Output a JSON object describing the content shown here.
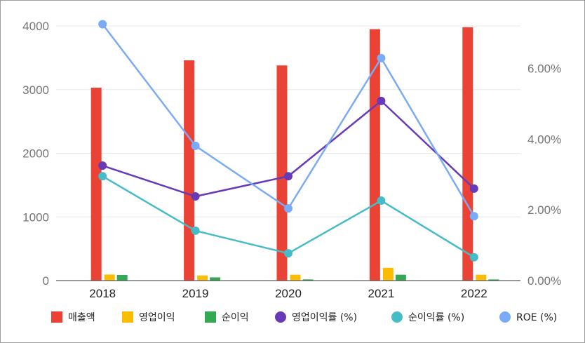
{
  "chart_data": {
    "type": "bar",
    "categories": [
      "2018",
      "2019",
      "2020",
      "2021",
      "2022"
    ],
    "series": [
      {
        "name": "매출액",
        "type": "bar",
        "axis": "left",
        "color": "#ea4335",
        "values": [
          3030,
          3460,
          3380,
          3950,
          3980
        ]
      },
      {
        "name": "영업이익",
        "type": "bar",
        "axis": "left",
        "color": "#fbbc04",
        "values": [
          95,
          80,
          92,
          200,
          92
        ]
      },
      {
        "name": "순이익",
        "type": "bar",
        "axis": "left",
        "color": "#34a853",
        "values": [
          88,
          50,
          18,
          92,
          18
        ]
      },
      {
        "name": "영업이익률 (%)",
        "type": "line",
        "axis": "right",
        "color": "#673ab7",
        "values": [
          3.25,
          2.38,
          2.95,
          5.08,
          2.6
        ]
      },
      {
        "name": "순이익률 (%)",
        "type": "line",
        "axis": "right",
        "color": "#46bdc6",
        "values": [
          2.95,
          1.41,
          0.77,
          2.26,
          0.66
        ]
      },
      {
        "name": "ROE (%)",
        "type": "line",
        "axis": "right",
        "color": "#7baaf7",
        "values": [
          7.25,
          3.81,
          2.04,
          6.29,
          1.82
        ]
      }
    ],
    "y_left": {
      "ylim": [
        0,
        4000
      ],
      "ticks": [
        "0",
        "1000",
        "2000",
        "3000",
        "4000"
      ]
    },
    "y_right": {
      "ylim": [
        0,
        7.2
      ],
      "ticks": [
        "0.00%",
        "2.00%",
        "4.00%",
        "6.00%"
      ]
    },
    "grid": true,
    "legend_position": "bottom",
    "title": "",
    "xlabel": "",
    "ylabel": ""
  }
}
